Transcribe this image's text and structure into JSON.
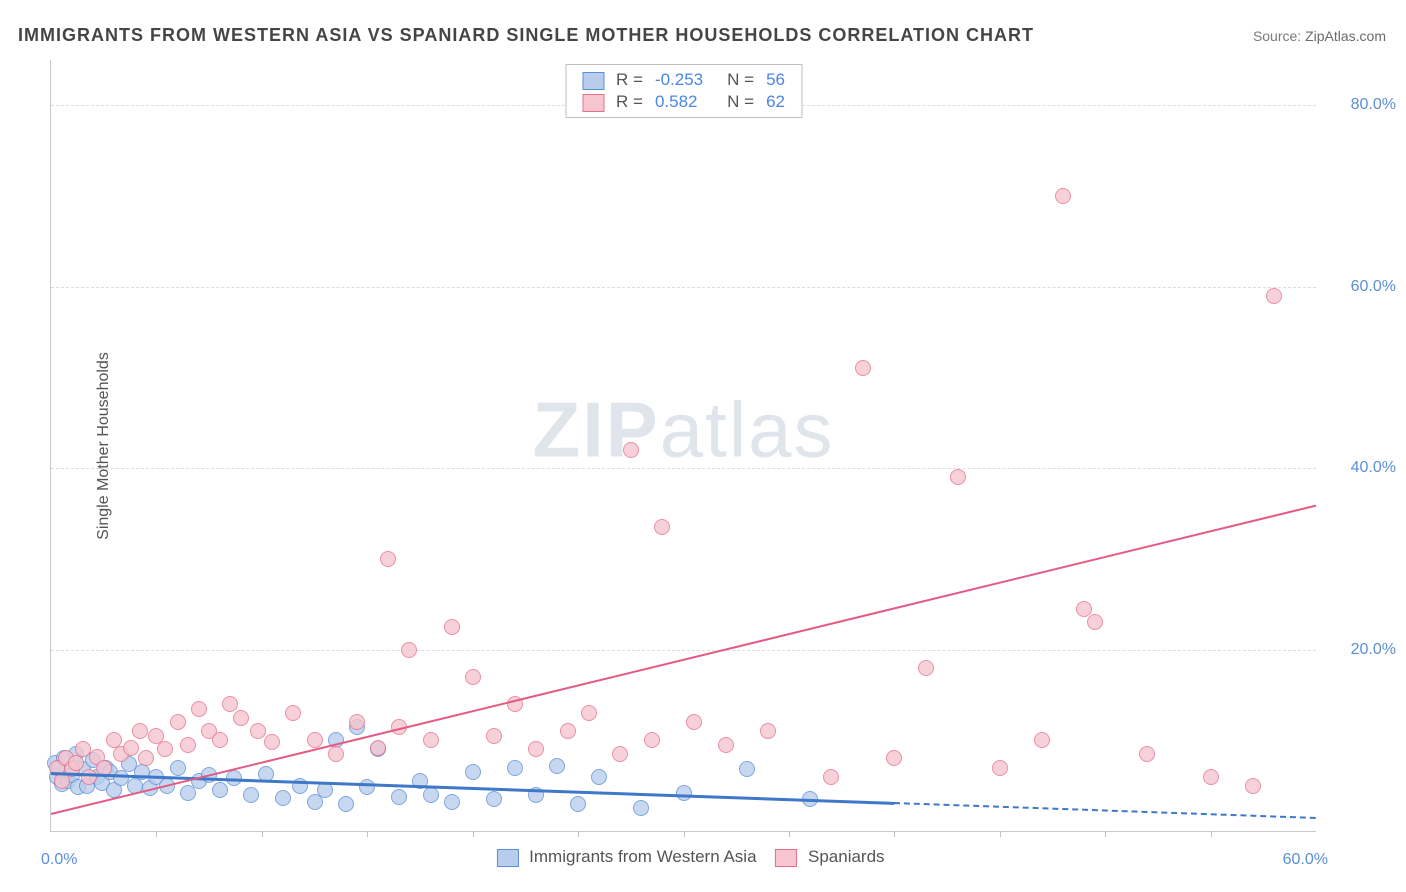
{
  "title": "IMMIGRANTS FROM WESTERN ASIA VS SPANIARD SINGLE MOTHER HOUSEHOLDS CORRELATION CHART",
  "source_label": "Source:",
  "source_name": "ZipAtlas.com",
  "ylabel": "Single Mother Households",
  "watermark": {
    "part1": "ZIP",
    "part2": "atlas"
  },
  "chart": {
    "type": "scatter",
    "background_color": "#ffffff",
    "grid_color": "#dcdcdc",
    "axis_color": "#c9c9c9",
    "tick_label_color": "#5b8fd6",
    "xlim": [
      0,
      60
    ],
    "ylim": [
      0,
      85
    ],
    "yticks": [
      20,
      40,
      60,
      80
    ],
    "ytick_labels": [
      "20.0%",
      "40.0%",
      "60.0%",
      "80.0%"
    ],
    "xticks": [
      5,
      10,
      15,
      20,
      25,
      30,
      35,
      40,
      45,
      50,
      55
    ],
    "xtick_label_left": "0.0%",
    "xtick_label_right": "60.0%",
    "marker_radius": 8,
    "series": [
      {
        "name": "Immigrants from Western Asia",
        "color_fill": "#b8cdec",
        "color_stroke": "#5b8fd6",
        "R": "-0.253",
        "N": "56",
        "trend": {
          "x1": 0,
          "y1": 6.5,
          "x2": 40,
          "y2": 3.2,
          "extend_to": 60,
          "color": "#3f78c9",
          "width": 3,
          "dash_after": true
        },
        "points": [
          [
            0.2,
            7.5
          ],
          [
            0.3,
            6.0
          ],
          [
            0.4,
            7.0
          ],
          [
            0.5,
            5.2
          ],
          [
            0.6,
            8.0
          ],
          [
            0.8,
            5.5
          ],
          [
            1.0,
            6.2
          ],
          [
            1.2,
            8.5
          ],
          [
            1.3,
            4.8
          ],
          [
            1.5,
            6.8
          ],
          [
            1.7,
            5.0
          ],
          [
            2.0,
            7.8
          ],
          [
            2.2,
            6.0
          ],
          [
            2.4,
            5.3
          ],
          [
            2.6,
            7.0
          ],
          [
            2.8,
            6.5
          ],
          [
            3.0,
            4.5
          ],
          [
            3.3,
            5.8
          ],
          [
            3.7,
            7.4
          ],
          [
            4.0,
            5.0
          ],
          [
            4.3,
            6.5
          ],
          [
            4.7,
            4.7
          ],
          [
            5.0,
            6.0
          ],
          [
            5.5,
            5.0
          ],
          [
            6.0,
            7.0
          ],
          [
            6.5,
            4.2
          ],
          [
            7.0,
            5.5
          ],
          [
            7.5,
            6.2
          ],
          [
            8.0,
            4.5
          ],
          [
            8.7,
            5.8
          ],
          [
            9.5,
            4.0
          ],
          [
            10.2,
            6.3
          ],
          [
            11.0,
            3.6
          ],
          [
            11.8,
            5.0
          ],
          [
            12.5,
            3.2
          ],
          [
            13.0,
            4.5
          ],
          [
            13.5,
            10.0
          ],
          [
            14.0,
            3.0
          ],
          [
            14.5,
            11.5
          ],
          [
            15.0,
            4.8
          ],
          [
            15.5,
            9.0
          ],
          [
            16.5,
            3.8
          ],
          [
            17.5,
            5.5
          ],
          [
            18.0,
            4.0
          ],
          [
            19.0,
            3.2
          ],
          [
            20.0,
            6.5
          ],
          [
            21.0,
            3.5
          ],
          [
            22.0,
            7.0
          ],
          [
            23.0,
            4.0
          ],
          [
            24.0,
            7.2
          ],
          [
            25.0,
            3.0
          ],
          [
            26.0,
            6.0
          ],
          [
            28.0,
            2.5
          ],
          [
            30.0,
            4.2
          ],
          [
            33.0,
            6.8
          ],
          [
            36.0,
            3.5
          ]
        ]
      },
      {
        "name": "Spaniards",
        "color_fill": "#f6c5cf",
        "color_stroke": "#e86f8c",
        "R": "0.582",
        "N": "62",
        "trend": {
          "x1": 0,
          "y1": 2.0,
          "x2": 60,
          "y2": 36.0,
          "color": "#e35b82",
          "width": 2.5,
          "dash_after": false
        },
        "points": [
          [
            0.3,
            7.0
          ],
          [
            0.5,
            5.5
          ],
          [
            0.7,
            8.0
          ],
          [
            1.0,
            6.8
          ],
          [
            1.2,
            7.5
          ],
          [
            1.5,
            9.0
          ],
          [
            1.8,
            6.0
          ],
          [
            2.2,
            8.2
          ],
          [
            2.5,
            7.0
          ],
          [
            3.0,
            10.0
          ],
          [
            3.3,
            8.5
          ],
          [
            3.8,
            9.2
          ],
          [
            4.2,
            11.0
          ],
          [
            4.5,
            8.0
          ],
          [
            5.0,
            10.5
          ],
          [
            5.4,
            9.0
          ],
          [
            6.0,
            12.0
          ],
          [
            6.5,
            9.5
          ],
          [
            7.0,
            13.5
          ],
          [
            7.5,
            11.0
          ],
          [
            8.0,
            10.0
          ],
          [
            8.5,
            14.0
          ],
          [
            9.0,
            12.5
          ],
          [
            9.8,
            11.0
          ],
          [
            10.5,
            9.8
          ],
          [
            11.5,
            13.0
          ],
          [
            12.5,
            10.0
          ],
          [
            13.5,
            8.5
          ],
          [
            14.5,
            12.0
          ],
          [
            15.5,
            9.2
          ],
          [
            16.0,
            30.0
          ],
          [
            16.5,
            11.5
          ],
          [
            17.0,
            20.0
          ],
          [
            18.0,
            10.0
          ],
          [
            19.0,
            22.5
          ],
          [
            20.0,
            17.0
          ],
          [
            21.0,
            10.5
          ],
          [
            22.0,
            14.0
          ],
          [
            23.0,
            9.0
          ],
          [
            24.5,
            11.0
          ],
          [
            25.5,
            13.0
          ],
          [
            27.0,
            8.5
          ],
          [
            27.5,
            42.0
          ],
          [
            28.5,
            10.0
          ],
          [
            29.0,
            33.5
          ],
          [
            30.5,
            12.0
          ],
          [
            32.0,
            9.5
          ],
          [
            34.0,
            11.0
          ],
          [
            37.0,
            6.0
          ],
          [
            38.5,
            51.0
          ],
          [
            40.0,
            8.0
          ],
          [
            41.5,
            18.0
          ],
          [
            43.0,
            39.0
          ],
          [
            45.0,
            7.0
          ],
          [
            47.0,
            10.0
          ],
          [
            48.0,
            70.0
          ],
          [
            49.0,
            24.5
          ],
          [
            49.5,
            23.0
          ],
          [
            52.0,
            8.5
          ],
          [
            55.0,
            6.0
          ],
          [
            57.0,
            5.0
          ],
          [
            58.0,
            59.0
          ]
        ]
      }
    ]
  },
  "legend_top": {
    "R_label": "R =",
    "N_label": "N ="
  }
}
